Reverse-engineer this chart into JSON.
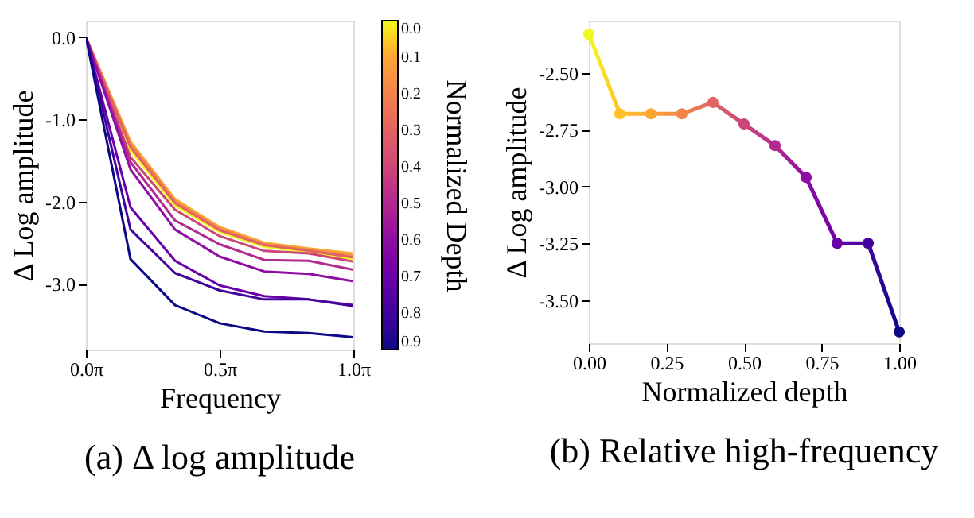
{
  "chart_data": [
    {
      "type": "line",
      "title": "(a) Δ log amplitude",
      "xlabel": "Frequency",
      "ylabel": "Δ Log amplitude",
      "clabel": "Normalized Depth",
      "x": [
        0,
        0.5236,
        1.0472,
        1.5708,
        2.0944,
        2.618,
        3.1416
      ],
      "xlim": [
        0,
        3.1416
      ],
      "xticks": [
        {
          "value": 0,
          "label": "0.0π"
        },
        {
          "value": 1.5708,
          "label": "0.5π"
        },
        {
          "value": 3.1416,
          "label": "1.0π"
        }
      ],
      "ylim": [
        -3.8,
        0.2
      ],
      "yticks": [
        {
          "value": 0,
          "label": "0.0"
        },
        {
          "value": -1,
          "label": "-1.0"
        },
        {
          "value": -2,
          "label": "-2.0"
        },
        {
          "value": -3,
          "label": "-3.0"
        }
      ],
      "clim": [
        0,
        0.9
      ],
      "cticks": [
        {
          "value": 0,
          "label": "0.0"
        },
        0.1,
        0.2,
        0.3,
        0.4,
        0.5,
        0.6,
        0.7,
        0.8,
        0.9
      ],
      "series": [
        {
          "color": "#f0f921",
          "values": [
            0,
            -1.38,
            -2.05,
            -2.37,
            -2.55,
            -2.62,
            -2.7
          ]
        },
        {
          "color": "#fca636",
          "values": [
            0,
            -1.27,
            -1.97,
            -2.31,
            -2.5,
            -2.57,
            -2.63
          ]
        },
        {
          "color": "#f2844b",
          "values": [
            0,
            -1.3,
            -2.0,
            -2.33,
            -2.52,
            -2.59,
            -2.66
          ]
        },
        {
          "color": "#e16462",
          "values": [
            0,
            -1.34,
            -2.02,
            -2.35,
            -2.53,
            -2.6,
            -2.68
          ]
        },
        {
          "color": "#cc4778",
          "values": [
            0,
            -1.46,
            -2.1,
            -2.42,
            -2.6,
            -2.63,
            -2.73
          ]
        },
        {
          "color": "#b12a90",
          "values": [
            0,
            -1.52,
            -2.23,
            -2.52,
            -2.71,
            -2.72,
            -2.83
          ]
        },
        {
          "color": "#8f0da4",
          "values": [
            0,
            -1.61,
            -2.34,
            -2.67,
            -2.85,
            -2.88,
            -2.97
          ]
        },
        {
          "color": "#6a00a8",
          "values": [
            0,
            -2.07,
            -2.72,
            -3.02,
            -3.15,
            -3.19,
            -3.26
          ]
        },
        {
          "color": "#41049d",
          "values": [
            0,
            -2.34,
            -2.87,
            -3.08,
            -3.19,
            -3.19,
            -3.27
          ]
        },
        {
          "color": "#0d0887",
          "values": [
            0,
            -2.7,
            -3.26,
            -3.48,
            -3.58,
            -3.6,
            -3.65
          ]
        }
      ],
      "grid": false,
      "marker": "none",
      "line_style": "solid"
    },
    {
      "type": "line",
      "title": "(b) Relative high-frequency",
      "xlabel": "Normalized depth",
      "ylabel": "Δ Log amplitude",
      "x": [
        0,
        0.1,
        0.2,
        0.3,
        0.4,
        0.5,
        0.6,
        0.7,
        0.8,
        0.9,
        1.0
      ],
      "xlim": [
        0,
        1.0
      ],
      "xticks": [
        {
          "value": 0,
          "label": "0.00"
        },
        {
          "value": 0.25,
          "label": "0.25"
        },
        {
          "value": 0.5,
          "label": "0.50"
        },
        {
          "value": 0.75,
          "label": "0.75"
        },
        {
          "value": 1,
          "label": "1.00"
        }
      ],
      "ylim": [
        -3.69,
        -2.27
      ],
      "yticks": [
        {
          "value": -2.5,
          "label": "-2.50"
        },
        {
          "value": -2.75,
          "label": "-2.75"
        },
        {
          "value": -3.0,
          "label": "-3.00"
        },
        {
          "value": -3.25,
          "label": "-3.25"
        },
        {
          "value": -3.5,
          "label": "-3.50"
        }
      ],
      "values": [
        -2.33,
        -2.68,
        -2.68,
        -2.68,
        -2.63,
        -2.725,
        -2.82,
        -2.96,
        -3.25,
        -3.25,
        -3.64
      ],
      "colors": [
        "#f0f921",
        "#fdc328",
        "#fca636",
        "#f2844b",
        "#e16462",
        "#cc4778",
        "#b12a90",
        "#8f0da4",
        "#6a00a8",
        "#41049d",
        "#0d0887"
      ],
      "grid": false,
      "marker": "circle",
      "line_style": "solid"
    }
  ]
}
